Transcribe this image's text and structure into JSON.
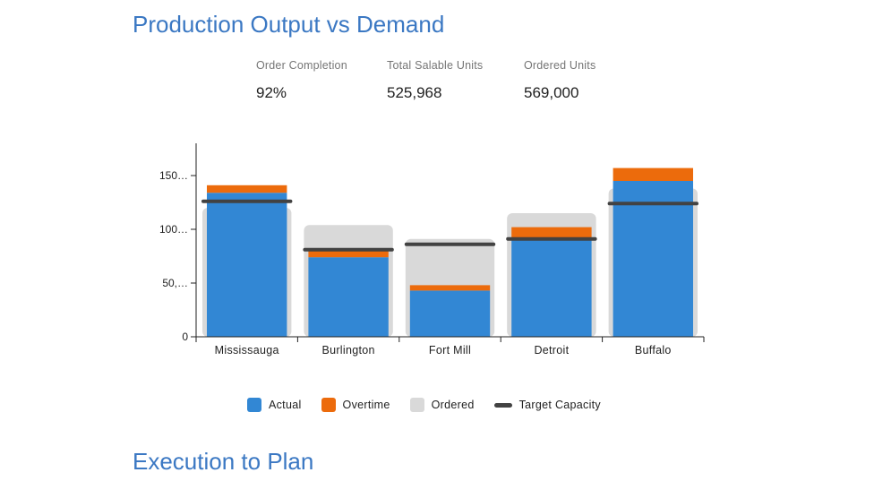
{
  "titles": {
    "production": "Production Output vs Demand",
    "execution": "Execution to Plan"
  },
  "kpis": [
    {
      "label": "Order Completion",
      "value": "92%"
    },
    {
      "label": "Total Salable Units",
      "value": "525,968"
    },
    {
      "label": "Ordered Units",
      "value": "569,000"
    }
  ],
  "colors": {
    "actual": "#3287d4",
    "overtime": "#ec6b0c",
    "ordered": "#d9d9d9",
    "target": "#424242",
    "title": "#3b78c3"
  },
  "chart_data": {
    "type": "bar",
    "categories": [
      "Mississauga",
      "Burlington",
      "Fort Mill",
      "Detroit",
      "Buffalo"
    ],
    "series": [
      {
        "name": "Actual",
        "values": [
          134,
          74,
          43,
          90,
          145
        ]
      },
      {
        "name": "Overtime",
        "values": [
          7,
          6,
          5,
          12,
          12
        ]
      },
      {
        "name": "Ordered",
        "values": [
          120,
          104,
          91,
          115,
          138
        ]
      },
      {
        "name": "Target Capacity",
        "values": [
          126,
          81,
          86,
          91,
          124
        ]
      }
    ],
    "y_ticks": [
      "0",
      "50,…",
      "100…",
      "150…"
    ],
    "y_tick_values": [
      0,
      50,
      100,
      150
    ],
    "ylim": [
      0,
      180
    ],
    "stacked": [
      "Actual",
      "Overtime"
    ],
    "legend": {
      "position": "bottom",
      "items": [
        "Actual",
        "Overtime",
        "Ordered",
        "Target Capacity"
      ]
    },
    "grid": false
  }
}
